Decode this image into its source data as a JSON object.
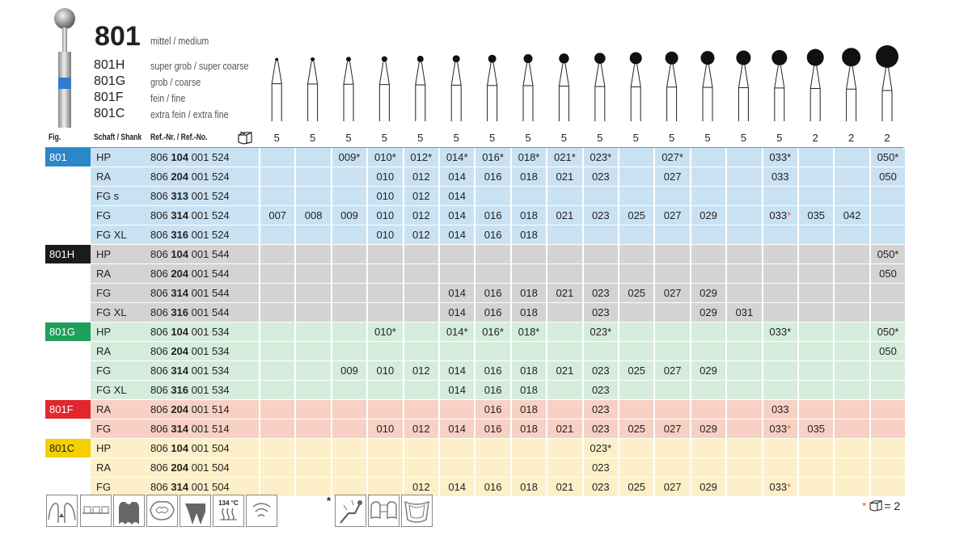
{
  "header": {
    "title": "801",
    "title_sub": "mittel / medium",
    "variants": [
      {
        "code": "801H",
        "desc": "super grob / super coarse"
      },
      {
        "code": "801G",
        "desc": "grob / coarse"
      },
      {
        "code": "801F",
        "desc": "fein / fine"
      },
      {
        "code": "801C",
        "desc": "extra fein / extra fine"
      }
    ]
  },
  "table": {
    "col_fig": "Fig.",
    "col_shank": "Schaft / Shank",
    "col_ref": "Ref.-Nr. / Ref.-No.",
    "pack_icon": "package-icon",
    "quantities": [
      "5",
      "5",
      "5",
      "5",
      "5",
      "5",
      "5",
      "5",
      "5",
      "5",
      "5",
      "5",
      "5",
      "5",
      "5",
      "2",
      "2",
      "2"
    ],
    "groups": [
      {
        "label": "801",
        "color": "#2a87c9",
        "bg": "#c9e2f3",
        "rows": [
          {
            "shank": "HP",
            "ref_a": "806",
            "ref_b": "104",
            "ref_c": "001 524",
            "sizes": [
              "",
              "",
              "009*",
              "010*",
              "012*",
              "014*",
              "016*",
              "018*",
              "021*",
              "023*",
              "",
              "027*",
              "",
              "",
              "033*",
              "",
              "",
              "050*"
            ]
          },
          {
            "shank": "RA",
            "ref_a": "806",
            "ref_b": "204",
            "ref_c": "001 524",
            "sizes": [
              "",
              "",
              "",
              "010",
              "012",
              "014",
              "016",
              "018",
              "021",
              "023",
              "",
              "027",
              "",
              "",
              "033",
              "",
              "",
              "050"
            ]
          },
          {
            "shank": "FG s",
            "ref_a": "806",
            "ref_b": "313",
            "ref_c": "001 524",
            "sizes": [
              "",
              "",
              "",
              "010",
              "012",
              "014",
              "",
              "",
              "",
              "",
              "",
              "",
              "",
              "",
              "",
              "",
              "",
              ""
            ]
          },
          {
            "shank": "FG",
            "ref_a": "806",
            "ref_b": "314",
            "ref_c": "001 524",
            "sizes": [
              "007",
              "008",
              "009",
              "010",
              "012",
              "014",
              "016",
              "018",
              "021",
              "023",
              "025",
              "027",
              "029",
              "",
              "033*",
              "035",
              "042",
              ""
            ]
          },
          {
            "shank": "FG XL",
            "ref_a": "806",
            "ref_b": "316",
            "ref_c": "001 524",
            "sizes": [
              "",
              "",
              "",
              "010",
              "012",
              "014",
              "016",
              "018",
              "",
              "",
              "",
              "",
              "",
              "",
              "",
              "",
              "",
              ""
            ]
          }
        ]
      },
      {
        "label": "801H",
        "color": "#1b1b1b",
        "bg": "#d3d3d3",
        "rows": [
          {
            "shank": "HP",
            "ref_a": "806",
            "ref_b": "104",
            "ref_c": "001 544",
            "sizes": [
              "",
              "",
              "",
              "",
              "",
              "",
              "",
              "",
              "",
              "",
              "",
              "",
              "",
              "",
              "",
              "",
              "",
              "050*"
            ]
          },
          {
            "shank": "RA",
            "ref_a": "806",
            "ref_b": "204",
            "ref_c": "001 544",
            "sizes": [
              "",
              "",
              "",
              "",
              "",
              "",
              "",
              "",
              "",
              "",
              "",
              "",
              "",
              "",
              "",
              "",
              "",
              "050"
            ]
          },
          {
            "shank": "FG",
            "ref_a": "806",
            "ref_b": "314",
            "ref_c": "001 544",
            "sizes": [
              "",
              "",
              "",
              "",
              "",
              "014",
              "016",
              "018",
              "021",
              "023",
              "025",
              "027",
              "029",
              "",
              "",
              "",
              "",
              ""
            ]
          },
          {
            "shank": "FG XL",
            "ref_a": "806",
            "ref_b": "316",
            "ref_c": "001 544",
            "sizes": [
              "",
              "",
              "",
              "",
              "",
              "014",
              "016",
              "018",
              "",
              "023",
              "",
              "",
              "029",
              "031",
              "",
              "",
              "",
              ""
            ]
          }
        ]
      },
      {
        "label": "801G",
        "color": "#1fa05a",
        "bg": "#d5ecdc",
        "rows": [
          {
            "shank": "HP",
            "ref_a": "806",
            "ref_b": "104",
            "ref_c": "001 534",
            "sizes": [
              "",
              "",
              "",
              "010*",
              "",
              "014*",
              "016*",
              "018*",
              "",
              "023*",
              "",
              "",
              "",
              "",
              "033*",
              "",
              "",
              "050*"
            ]
          },
          {
            "shank": "RA",
            "ref_a": "806",
            "ref_b": "204",
            "ref_c": "001 534",
            "sizes": [
              "",
              "",
              "",
              "",
              "",
              "",
              "",
              "",
              "",
              "",
              "",
              "",
              "",
              "",
              "",
              "",
              "",
              "050"
            ]
          },
          {
            "shank": "FG",
            "ref_a": "806",
            "ref_b": "314",
            "ref_c": "001 534",
            "sizes": [
              "",
              "",
              "009",
              "010",
              "012",
              "014",
              "016",
              "018",
              "021",
              "023",
              "025",
              "027",
              "029",
              "",
              "",
              "",
              "",
              ""
            ]
          },
          {
            "shank": "FG XL",
            "ref_a": "806",
            "ref_b": "316",
            "ref_c": "001 534",
            "sizes": [
              "",
              "",
              "",
              "",
              "",
              "014",
              "016",
              "018",
              "",
              "023",
              "",
              "",
              "",
              "",
              "",
              "",
              "",
              ""
            ]
          }
        ]
      },
      {
        "label": "801F",
        "color": "#e2262d",
        "bg": "#f8d1c4",
        "rows": [
          {
            "shank": "RA",
            "ref_a": "806",
            "ref_b": "204",
            "ref_c": "001 514",
            "sizes": [
              "",
              "",
              "",
              "",
              "",
              "",
              "016",
              "018",
              "",
              "023",
              "",
              "",
              "",
              "",
              "033",
              "",
              "",
              ""
            ]
          },
          {
            "shank": "FG",
            "ref_a": "806",
            "ref_b": "314",
            "ref_c": "001 514",
            "sizes": [
              "",
              "",
              "",
              "010",
              "012",
              "014",
              "016",
              "018",
              "021",
              "023",
              "025",
              "027",
              "029",
              "",
              "033*",
              "035",
              "",
              ""
            ]
          }
        ]
      },
      {
        "label": "801C",
        "color": "#f5d000",
        "bg": "#fdf0c8",
        "rows": [
          {
            "shank": "HP",
            "ref_a": "806",
            "ref_b": "104",
            "ref_c": "001 504",
            "sizes": [
              "",
              "",
              "",
              "",
              "",
              "",
              "",
              "",
              "",
              "023*",
              "",
              "",
              "",
              "",
              "",
              "",
              "",
              ""
            ]
          },
          {
            "shank": "RA",
            "ref_a": "806",
            "ref_b": "204",
            "ref_c": "001 504",
            "sizes": [
              "",
              "",
              "",
              "",
              "",
              "",
              "",
              "",
              "",
              "023",
              "",
              "",
              "",
              "",
              "",
              "",
              "",
              ""
            ]
          },
          {
            "shank": "FG",
            "ref_a": "806",
            "ref_b": "314",
            "ref_c": "001 504",
            "sizes": [
              "",
              "",
              "",
              "",
              "012",
              "014",
              "016",
              "018",
              "021",
              "023",
              "025",
              "027",
              "029",
              "",
              "033*",
              "",
              "",
              ""
            ]
          }
        ]
      }
    ]
  },
  "orange_star_cells": [
    "033*"
  ],
  "icons_left": [
    "crown-prep-icon",
    "orthodontic-bracket-icon",
    "cavity-prep-icon",
    "occlusal-icon",
    "tooth-root-icon",
    "sterilization-134c-icon",
    "water-spray-icon"
  ],
  "icon_134": "134 °C",
  "icon_star": "*",
  "icons_right": [
    "handpiece-icon",
    "bridge-icon",
    "denture-icon"
  ],
  "legend": {
    "star": "*",
    "icon": "package-icon",
    "text": "= 2"
  }
}
